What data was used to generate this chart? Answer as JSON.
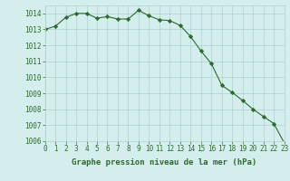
{
  "hours": [
    0,
    1,
    2,
    3,
    4,
    5,
    6,
    7,
    8,
    9,
    10,
    11,
    12,
    13,
    14,
    15,
    16,
    17,
    18,
    19,
    20,
    21,
    22,
    23
  ],
  "pressure": [
    1013.0,
    1013.2,
    1013.75,
    1014.0,
    1014.0,
    1013.7,
    1013.8,
    1013.65,
    1013.65,
    1014.2,
    1013.85,
    1013.6,
    1013.55,
    1013.25,
    1012.55,
    1011.65,
    1010.85,
    1009.5,
    1009.05,
    1008.55,
    1008.0,
    1007.55,
    1007.1,
    1005.9
  ],
  "xlim": [
    0,
    23
  ],
  "ylim": [
    1006,
    1014.5
  ],
  "yticks": [
    1006,
    1007,
    1008,
    1009,
    1010,
    1011,
    1012,
    1013,
    1014
  ],
  "xtick_labels": [
    "0",
    "1",
    "2",
    "3",
    "4",
    "5",
    "6",
    "7",
    "8",
    "9",
    "10",
    "11",
    "12",
    "13",
    "14",
    "15",
    "16",
    "17",
    "18",
    "19",
    "20",
    "21",
    "22",
    "23"
  ],
  "xlabel": "Graphe pression niveau de la mer (hPa)",
  "line_color": "#2d6a2d",
  "marker": "D",
  "marker_size": 2.2,
  "background_color": "#d4eded",
  "grid_color": "#b0d0d0",
  "tick_color": "#2d6a2d",
  "label_color": "#2d6a2d",
  "tick_fontsize": 5.5,
  "xlabel_fontsize": 6.5
}
